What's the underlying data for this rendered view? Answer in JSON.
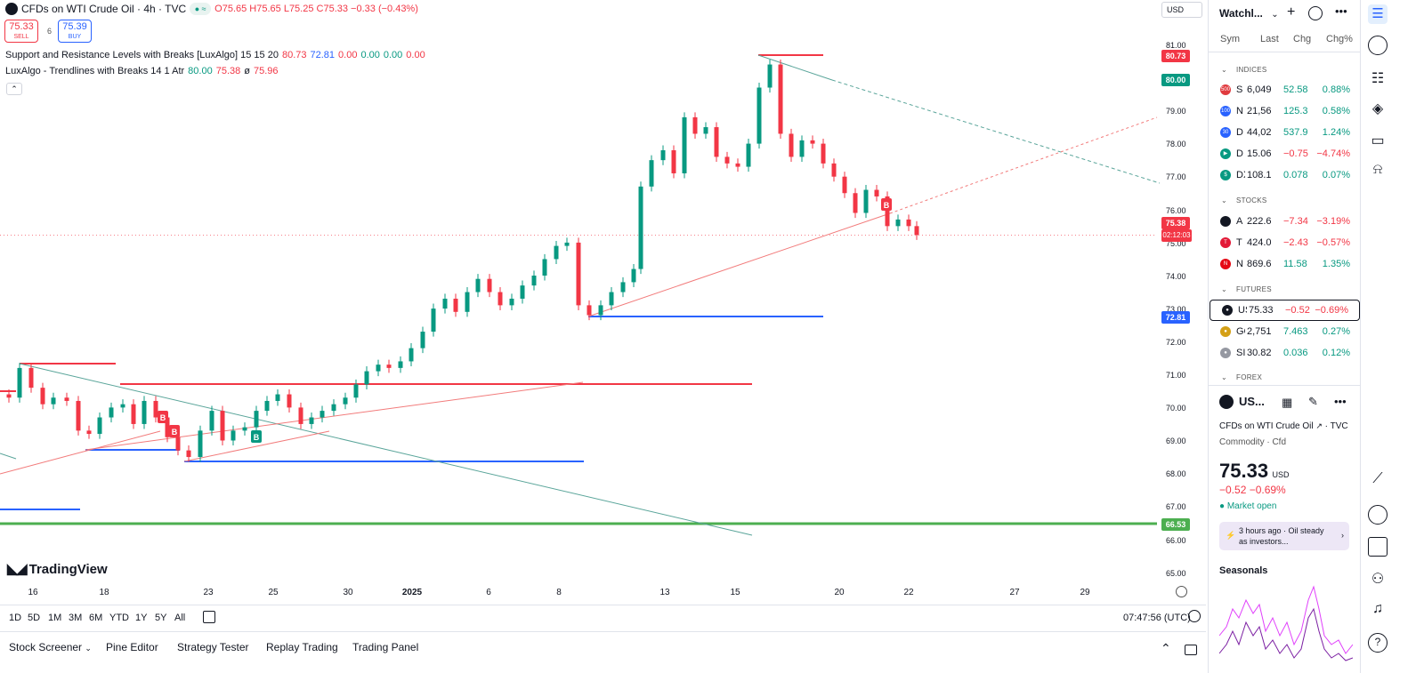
{
  "header": {
    "title": "CFDs on WTI Crude Oil · 4h · TVC",
    "ohlc": "O75.65 H75.65 L75.25 C75.33 −0.33 (−0.43%)",
    "sell_price": "75.33",
    "sell_label": "SELL",
    "spread": "6",
    "buy_price": "75.39",
    "buy_label": "BUY",
    "currency": "USD"
  },
  "indicators": [
    {
      "name": "Support and Resistance Levels with Breaks [LuxAlgo] 15 15 20",
      "values": [
        {
          "v": "80.73",
          "color": "#f23645"
        },
        {
          "v": "72.81",
          "color": "#2962ff"
        },
        {
          "v": "0.00",
          "color": "#f23645"
        },
        {
          "v": "0.00",
          "color": "#089981"
        },
        {
          "v": "0.00",
          "color": "#089981"
        },
        {
          "v": "0.00",
          "color": "#f23645"
        }
      ]
    },
    {
      "name": "LuxAlgo - Trendlines with Breaks 14 1 Atr",
      "values": [
        {
          "v": "80.00",
          "color": "#089981"
        },
        {
          "v": "75.38",
          "color": "#f23645"
        },
        {
          "v": "ø",
          "color": "#131722"
        },
        {
          "v": "75.96",
          "color": "#f23645"
        }
      ]
    }
  ],
  "y_axis": [
    "81.00",
    "80.00",
    "79.00",
    "78.00",
    "77.00",
    "76.00",
    "75.00",
    "74.00",
    "73.00",
    "72.00",
    "71.00",
    "70.00",
    "69.00",
    "68.00",
    "67.00",
    "66.00",
    "65.00"
  ],
  "x_axis": [
    {
      "label": "16"
    },
    {
      "label": "18"
    },
    {
      "label": "23"
    },
    {
      "label": "25"
    },
    {
      "label": "30"
    },
    {
      "label": "2025"
    },
    {
      "label": "6"
    },
    {
      "label": "8"
    },
    {
      "label": "13"
    },
    {
      "label": "15"
    },
    {
      "label": "20"
    },
    {
      "label": "22"
    },
    {
      "label": "27"
    },
    {
      "label": "29"
    }
  ],
  "price_tags": {
    "resistance": "80.73",
    "trend": "80.00",
    "last": "75.38",
    "countdown": "02:12:03",
    "support": "72.81",
    "green": "66.53"
  },
  "brand": "TradingView",
  "range_buttons": [
    "1D",
    "5D",
    "1M",
    "3M",
    "6M",
    "YTD",
    "1Y",
    "5Y",
    "All"
  ],
  "clock": "07:47:56 (UTC)",
  "bottom_tabs": [
    "Stock Screener",
    "Pine Editor",
    "Strategy Tester",
    "Replay Trading",
    "Trading Panel"
  ],
  "watchlist": {
    "title": "Watchl...",
    "columns": {
      "sym": "Sym",
      "last": "Last",
      "chg": "Chg",
      "chgp": "Chg%"
    },
    "sections": {
      "indices": "INDICES",
      "stocks": "STOCKS",
      "futures": "FUTURES",
      "forex": "FOREX"
    },
    "indices": [
      {
        "icon": "500",
        "color": "#e03a3e",
        "sym": "S",
        "last": "6,049",
        "chg": "52.58",
        "chgp": "0.88%",
        "dir": "pos"
      },
      {
        "icon": "100",
        "color": "#2962ff",
        "sym": "N",
        "last": "21,56",
        "chg": "125.3",
        "chgp": "0.58%",
        "dir": "pos"
      },
      {
        "icon": "30",
        "color": "#2962ff",
        "sym": "D",
        "last": "44,02",
        "chg": "537.9",
        "chgp": "1.24%",
        "dir": "pos"
      },
      {
        "icon": "▶",
        "color": "#089981",
        "sym": "D",
        "last": "15.06",
        "chg": "−0.75",
        "chgp": "−4.74%",
        "dir": "neg"
      },
      {
        "icon": "$",
        "color": "#089981",
        "sym": "DX",
        "last": "108.1",
        "chg": "0.078",
        "chgp": "0.07%",
        "dir": "pos"
      }
    ],
    "stocks": [
      {
        "icon": "",
        "color": "#131722",
        "sym": "A",
        "last": "222.6",
        "chg": "−7.34",
        "chgp": "−3.19%",
        "dir": "neg"
      },
      {
        "icon": "T",
        "color": "#e31937",
        "sym": "T",
        "last": "424.0",
        "chg": "−2.43",
        "chgp": "−0.57%",
        "dir": "neg"
      },
      {
        "icon": "N",
        "color": "#e50914",
        "sym": "N",
        "last": "869.6",
        "chg": "11.58",
        "chgp": "1.35%",
        "dir": "pos"
      }
    ],
    "futures": [
      {
        "icon": "●",
        "color": "#131722",
        "sym": "US",
        "last": "75.33",
        "chg": "−0.52",
        "chgp": "−0.69%",
        "dir": "neg"
      },
      {
        "icon": "●",
        "color": "#d4a017",
        "sym": "GC",
        "last": "2,751",
        "chg": "7.463",
        "chgp": "0.27%",
        "dir": "pos"
      },
      {
        "icon": "●",
        "color": "#9598a1",
        "sym": "SI",
        "last": "30.82",
        "chg": "0.036",
        "chgp": "0.12%",
        "dir": "pos"
      }
    ]
  },
  "detail": {
    "symbol": "US...",
    "name": "CFDs on WTI Crude Oil",
    "exchange": "TVC",
    "category": "Commodity · Cfd",
    "price": "75.33",
    "currency": "USD",
    "change": "−0.52  −0.69%",
    "status": "Market open",
    "news": "3 hours ago · Oil steady as investors...",
    "seasonals": "Seasonals"
  }
}
